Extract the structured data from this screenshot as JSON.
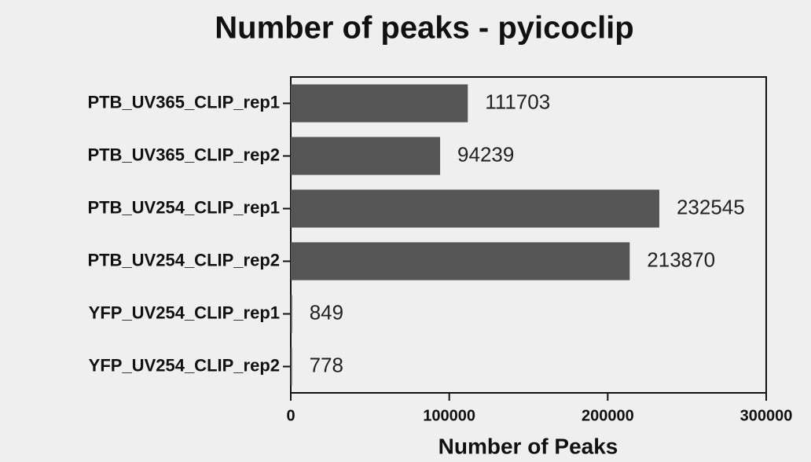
{
  "chart_data": {
    "type": "bar",
    "orientation": "horizontal",
    "title": "Number of peaks - pyicoclip",
    "x_label": "Number of Peaks",
    "categories": [
      "PTB_UV365_CLIP_rep1",
      "PTB_UV365_CLIP_rep2",
      "PTB_UV254_CLIP_rep1",
      "PTB_UV254_CLIP_rep2",
      "YFP_UV254_CLIP_rep1",
      "YFP_UV254_CLIP_rep2"
    ],
    "values": [
      111703,
      94239,
      232545,
      213870,
      849,
      778
    ],
    "color": "#555555",
    "xlim": [
      0,
      300000
    ],
    "xticks": [
      0,
      100000,
      200000,
      300000
    ],
    "grid": false
  }
}
